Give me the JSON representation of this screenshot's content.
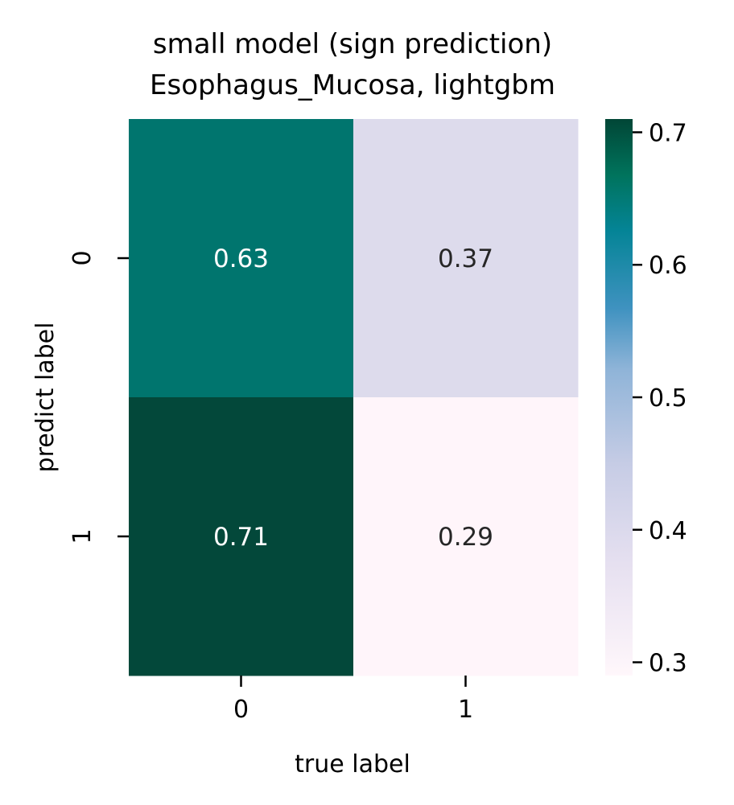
{
  "chart_data": {
    "type": "heatmap",
    "title": "small model (sign prediction)",
    "subtitle": "Esophagus_Mucosa, lightgbm",
    "xlabel": "true label",
    "ylabel": "predict label",
    "x_categories": [
      "0",
      "1"
    ],
    "y_categories": [
      "0",
      "1"
    ],
    "values": [
      [
        0.63,
        0.37
      ],
      [
        0.71,
        0.29
      ]
    ],
    "cell_labels": [
      [
        "0.63",
        "0.37"
      ],
      [
        "0.71",
        "0.29"
      ]
    ],
    "colorbar": {
      "range": [
        0.29,
        0.71
      ],
      "ticks": [
        0.3,
        0.4,
        0.5,
        0.6,
        0.7
      ],
      "tick_labels": [
        "0.3",
        "0.4",
        "0.5",
        "0.6",
        "0.7"
      ],
      "colormap": "PuBuGn"
    },
    "colors": {
      "cell_colors": [
        [
          "#00756e",
          "#dddbec"
        ],
        [
          "#03483a",
          "#fff5fa"
        ]
      ],
      "dark_text": "#262626",
      "light_text": "#ffffff"
    }
  }
}
